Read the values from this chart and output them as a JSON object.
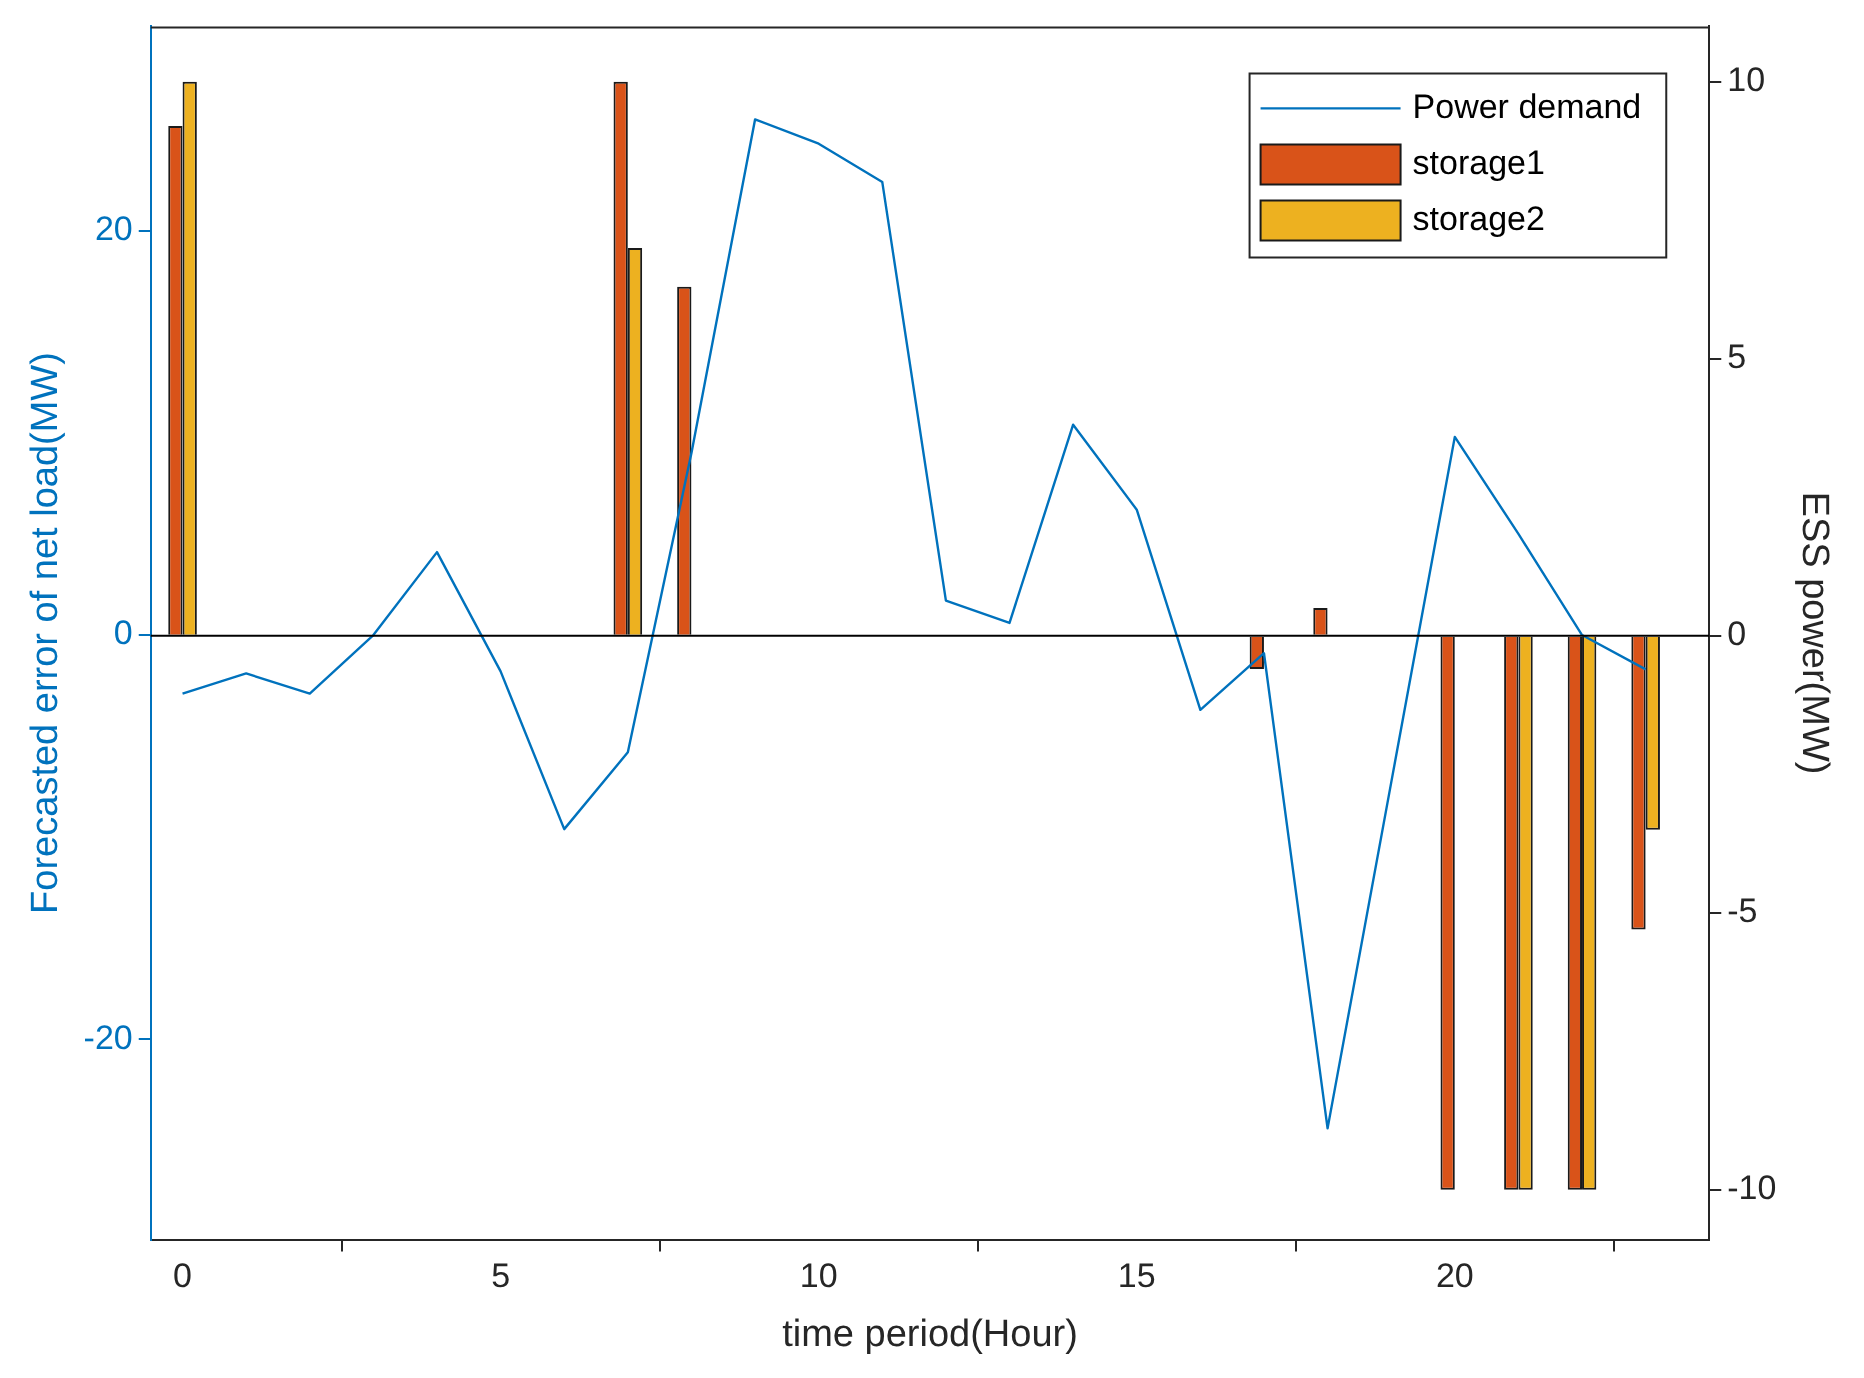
{
  "chart_data": {
    "type": "bar",
    "xlabel": "time period(Hour)",
    "ylabel": "Forecasted error of net load(MW)",
    "y2label": "ESS power(MW)",
    "x": [
      0,
      1,
      2,
      3,
      4,
      5,
      6,
      7,
      8,
      9,
      10,
      11,
      12,
      13,
      14,
      15,
      16,
      17,
      18,
      19,
      20,
      21,
      22,
      23
    ],
    "xlim": [
      -0.5,
      24
    ],
    "xticks": [
      0,
      5,
      10,
      15,
      20
    ],
    "ylim": [
      -29.9,
      30.1
    ],
    "yticks": [
      -20,
      0,
      20
    ],
    "y2lim": [
      -10.9,
      11
    ],
    "y2ticks": [
      -10,
      -5,
      0,
      5,
      10
    ],
    "series": [
      {
        "name": "Power demand",
        "type": "line",
        "color": "#0072bd",
        "values": [
          -2.9,
          -1.9,
          -2.9,
          0,
          4.1,
          -1.8,
          -9.6,
          -5.8,
          9.0,
          25.5,
          24.3,
          22.4,
          1.7,
          0.6,
          10.4,
          6.2,
          -3.7,
          -0.9,
          -24.4,
          -7.3,
          9.8,
          5.0,
          0,
          -1.7
        ]
      },
      {
        "name": "storage1",
        "axis": "y2",
        "color": "#d95319",
        "values": [
          9.2,
          0,
          0,
          0,
          0,
          0,
          0,
          10,
          6.3,
          0,
          0,
          0,
          0,
          0,
          0,
          0,
          0,
          -0.6,
          0.5,
          0,
          -10,
          -10,
          -10,
          -5.3
        ]
      },
      {
        "name": "storage2",
        "axis": "y2",
        "color": "#edb120",
        "values": [
          10,
          0,
          0,
          0,
          0,
          0,
          0,
          7.0,
          0,
          0,
          0,
          0,
          0,
          0,
          0,
          0,
          0,
          0,
          0,
          0,
          0,
          -10,
          -10,
          -3.5
        ]
      }
    ],
    "legend": "top right"
  }
}
